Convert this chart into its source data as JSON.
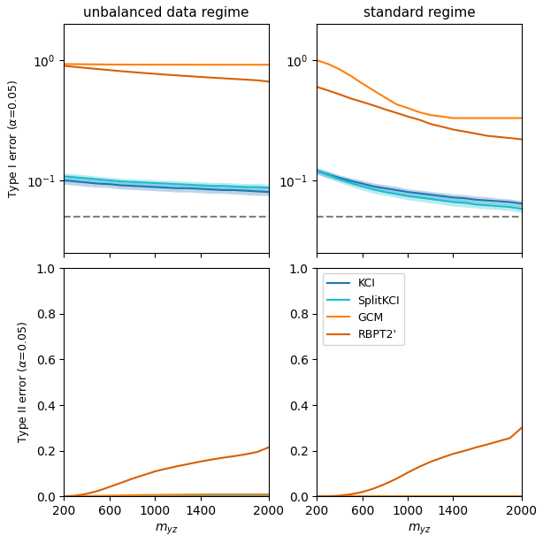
{
  "x": [
    200,
    300,
    400,
    500,
    600,
    700,
    800,
    900,
    1000,
    1100,
    1200,
    1300,
    1400,
    1500,
    1600,
    1700,
    1800,
    1900,
    2000
  ],
  "titles": [
    "unbalanced data regime",
    "standard regime"
  ],
  "xlabel": "$m_{yz}$",
  "ylabel_top": "Type I error ($\\alpha$=0.05)",
  "ylabel_bottom": "Type II error ($\\alpha$=0.05)",
  "colors": {
    "KCI": "#1f77b4",
    "SplitKCI": "#17becf",
    "GCM": "#ff7f0e",
    "RBPT2": "#d95f02"
  },
  "legend_labels": [
    "KCI",
    "SplitKCI",
    "GCM",
    "RBPT2'"
  ],
  "unbalanced": {
    "typeI": {
      "KCI_mean": [
        0.1,
        0.098,
        0.096,
        0.094,
        0.093,
        0.091,
        0.09,
        0.089,
        0.088,
        0.087,
        0.086,
        0.086,
        0.085,
        0.084,
        0.083,
        0.083,
        0.082,
        0.081,
        0.08
      ],
      "KCI_lo": [
        0.093,
        0.091,
        0.089,
        0.088,
        0.087,
        0.085,
        0.084,
        0.083,
        0.082,
        0.081,
        0.08,
        0.08,
        0.079,
        0.078,
        0.078,
        0.077,
        0.076,
        0.075,
        0.075
      ],
      "KCI_hi": [
        0.107,
        0.105,
        0.103,
        0.101,
        0.099,
        0.097,
        0.096,
        0.095,
        0.094,
        0.093,
        0.092,
        0.092,
        0.091,
        0.09,
        0.089,
        0.089,
        0.088,
        0.087,
        0.086
      ],
      "SplitKCI_mean": [
        0.108,
        0.106,
        0.104,
        0.102,
        0.1,
        0.098,
        0.097,
        0.096,
        0.095,
        0.094,
        0.093,
        0.092,
        0.091,
        0.09,
        0.09,
        0.089,
        0.088,
        0.088,
        0.087
      ],
      "SplitKCI_lo": [
        0.101,
        0.099,
        0.097,
        0.096,
        0.094,
        0.092,
        0.091,
        0.09,
        0.089,
        0.088,
        0.087,
        0.086,
        0.085,
        0.085,
        0.084,
        0.083,
        0.083,
        0.082,
        0.081
      ],
      "SplitKCI_hi": [
        0.115,
        0.113,
        0.111,
        0.108,
        0.106,
        0.104,
        0.103,
        0.102,
        0.101,
        0.1,
        0.099,
        0.098,
        0.097,
        0.096,
        0.096,
        0.095,
        0.094,
        0.094,
        0.093
      ],
      "GCM_mean": [
        0.93,
        0.928,
        0.926,
        0.924,
        0.922,
        0.921,
        0.92,
        0.92,
        0.919,
        0.919,
        0.919,
        0.919,
        0.918,
        0.918,
        0.918,
        0.918,
        0.918,
        0.918,
        0.918
      ],
      "RBPT2_mean": [
        0.9,
        0.88,
        0.862,
        0.845,
        0.828,
        0.812,
        0.798,
        0.784,
        0.771,
        0.759,
        0.748,
        0.737,
        0.727,
        0.717,
        0.708,
        0.699,
        0.69,
        0.681,
        0.665
      ]
    },
    "typeII": {
      "KCI_mean": [
        0.0,
        0.0,
        0.0,
        0.0,
        0.0,
        0.0,
        0.0,
        0.0,
        0.0,
        0.0,
        0.0,
        0.0,
        0.0,
        0.0,
        0.0,
        0.0,
        0.0,
        0.0,
        0.0
      ],
      "SplitKCI_mean": [
        0.0,
        0.0,
        0.0,
        0.0,
        0.0,
        0.0,
        0.0,
        0.0,
        0.0,
        0.0,
        0.0,
        0.0,
        0.0,
        0.0,
        0.0,
        0.0,
        0.0,
        0.0,
        0.0
      ],
      "GCM_mean": [
        0.0,
        0.001,
        0.002,
        0.003,
        0.004,
        0.005,
        0.006,
        0.007,
        0.007,
        0.008,
        0.008,
        0.009,
        0.009,
        0.01,
        0.01,
        0.01,
        0.01,
        0.01,
        0.01
      ],
      "RBPT2_mean": [
        0.0,
        0.004,
        0.012,
        0.025,
        0.042,
        0.06,
        0.078,
        0.094,
        0.11,
        0.122,
        0.133,
        0.143,
        0.153,
        0.162,
        0.17,
        0.177,
        0.185,
        0.195,
        0.215
      ]
    }
  },
  "standard": {
    "typeI": {
      "KCI_mean": [
        0.12,
        0.112,
        0.105,
        0.099,
        0.094,
        0.089,
        0.086,
        0.083,
        0.08,
        0.078,
        0.076,
        0.074,
        0.072,
        0.071,
        0.069,
        0.068,
        0.067,
        0.066,
        0.064
      ],
      "KCI_lo": [
        0.113,
        0.105,
        0.099,
        0.093,
        0.088,
        0.083,
        0.08,
        0.077,
        0.075,
        0.073,
        0.071,
        0.069,
        0.067,
        0.066,
        0.065,
        0.064,
        0.063,
        0.062,
        0.06
      ],
      "KCI_hi": [
        0.127,
        0.119,
        0.111,
        0.105,
        0.1,
        0.095,
        0.092,
        0.089,
        0.085,
        0.083,
        0.081,
        0.079,
        0.077,
        0.076,
        0.074,
        0.073,
        0.071,
        0.07,
        0.068
      ],
      "SplitKCI_mean": [
        0.12,
        0.111,
        0.102,
        0.095,
        0.089,
        0.084,
        0.08,
        0.077,
        0.074,
        0.072,
        0.07,
        0.068,
        0.066,
        0.065,
        0.063,
        0.062,
        0.061,
        0.06,
        0.058
      ],
      "SplitKCI_lo": [
        0.113,
        0.104,
        0.096,
        0.089,
        0.083,
        0.078,
        0.075,
        0.072,
        0.069,
        0.067,
        0.065,
        0.063,
        0.061,
        0.06,
        0.059,
        0.058,
        0.057,
        0.056,
        0.054
      ],
      "SplitKCI_hi": [
        0.127,
        0.118,
        0.108,
        0.101,
        0.095,
        0.09,
        0.085,
        0.082,
        0.079,
        0.077,
        0.075,
        0.073,
        0.071,
        0.07,
        0.067,
        0.066,
        0.065,
        0.064,
        0.062
      ],
      "GCM_mean": [
        1.0,
        0.93,
        0.84,
        0.74,
        0.64,
        0.56,
        0.49,
        0.43,
        0.4,
        0.37,
        0.35,
        0.34,
        0.33,
        0.33,
        0.33,
        0.33,
        0.33,
        0.33,
        0.33
      ],
      "RBPT2_mean": [
        0.6,
        0.56,
        0.52,
        0.48,
        0.45,
        0.42,
        0.39,
        0.365,
        0.34,
        0.32,
        0.295,
        0.28,
        0.265,
        0.255,
        0.245,
        0.235,
        0.23,
        0.225,
        0.22
      ]
    },
    "typeII": {
      "KCI_mean": [
        0.0,
        0.0,
        0.0,
        0.0,
        0.0,
        0.0,
        0.0,
        0.0,
        0.0,
        0.0,
        0.0,
        0.0,
        0.0,
        0.0,
        0.0,
        0.0,
        0.0,
        0.0,
        0.0
      ],
      "SplitKCI_mean": [
        0.0,
        0.0,
        0.0,
        0.0,
        0.0,
        0.0,
        0.0,
        0.0,
        0.0,
        0.0,
        0.0,
        0.0,
        0.0,
        0.0,
        0.0,
        0.0,
        0.0,
        0.0,
        0.0
      ],
      "GCM_mean": [
        0.0,
        0.0,
        0.0,
        0.0,
        0.0,
        0.0,
        0.0,
        0.0,
        0.0,
        0.0,
        0.0,
        0.0,
        0.0,
        0.0,
        0.0,
        0.0,
        0.0,
        0.0,
        0.0
      ],
      "RBPT2_mean": [
        0.0,
        0.001,
        0.004,
        0.01,
        0.02,
        0.035,
        0.055,
        0.078,
        0.105,
        0.13,
        0.152,
        0.17,
        0.187,
        0.2,
        0.215,
        0.228,
        0.242,
        0.256,
        0.3
      ]
    }
  }
}
